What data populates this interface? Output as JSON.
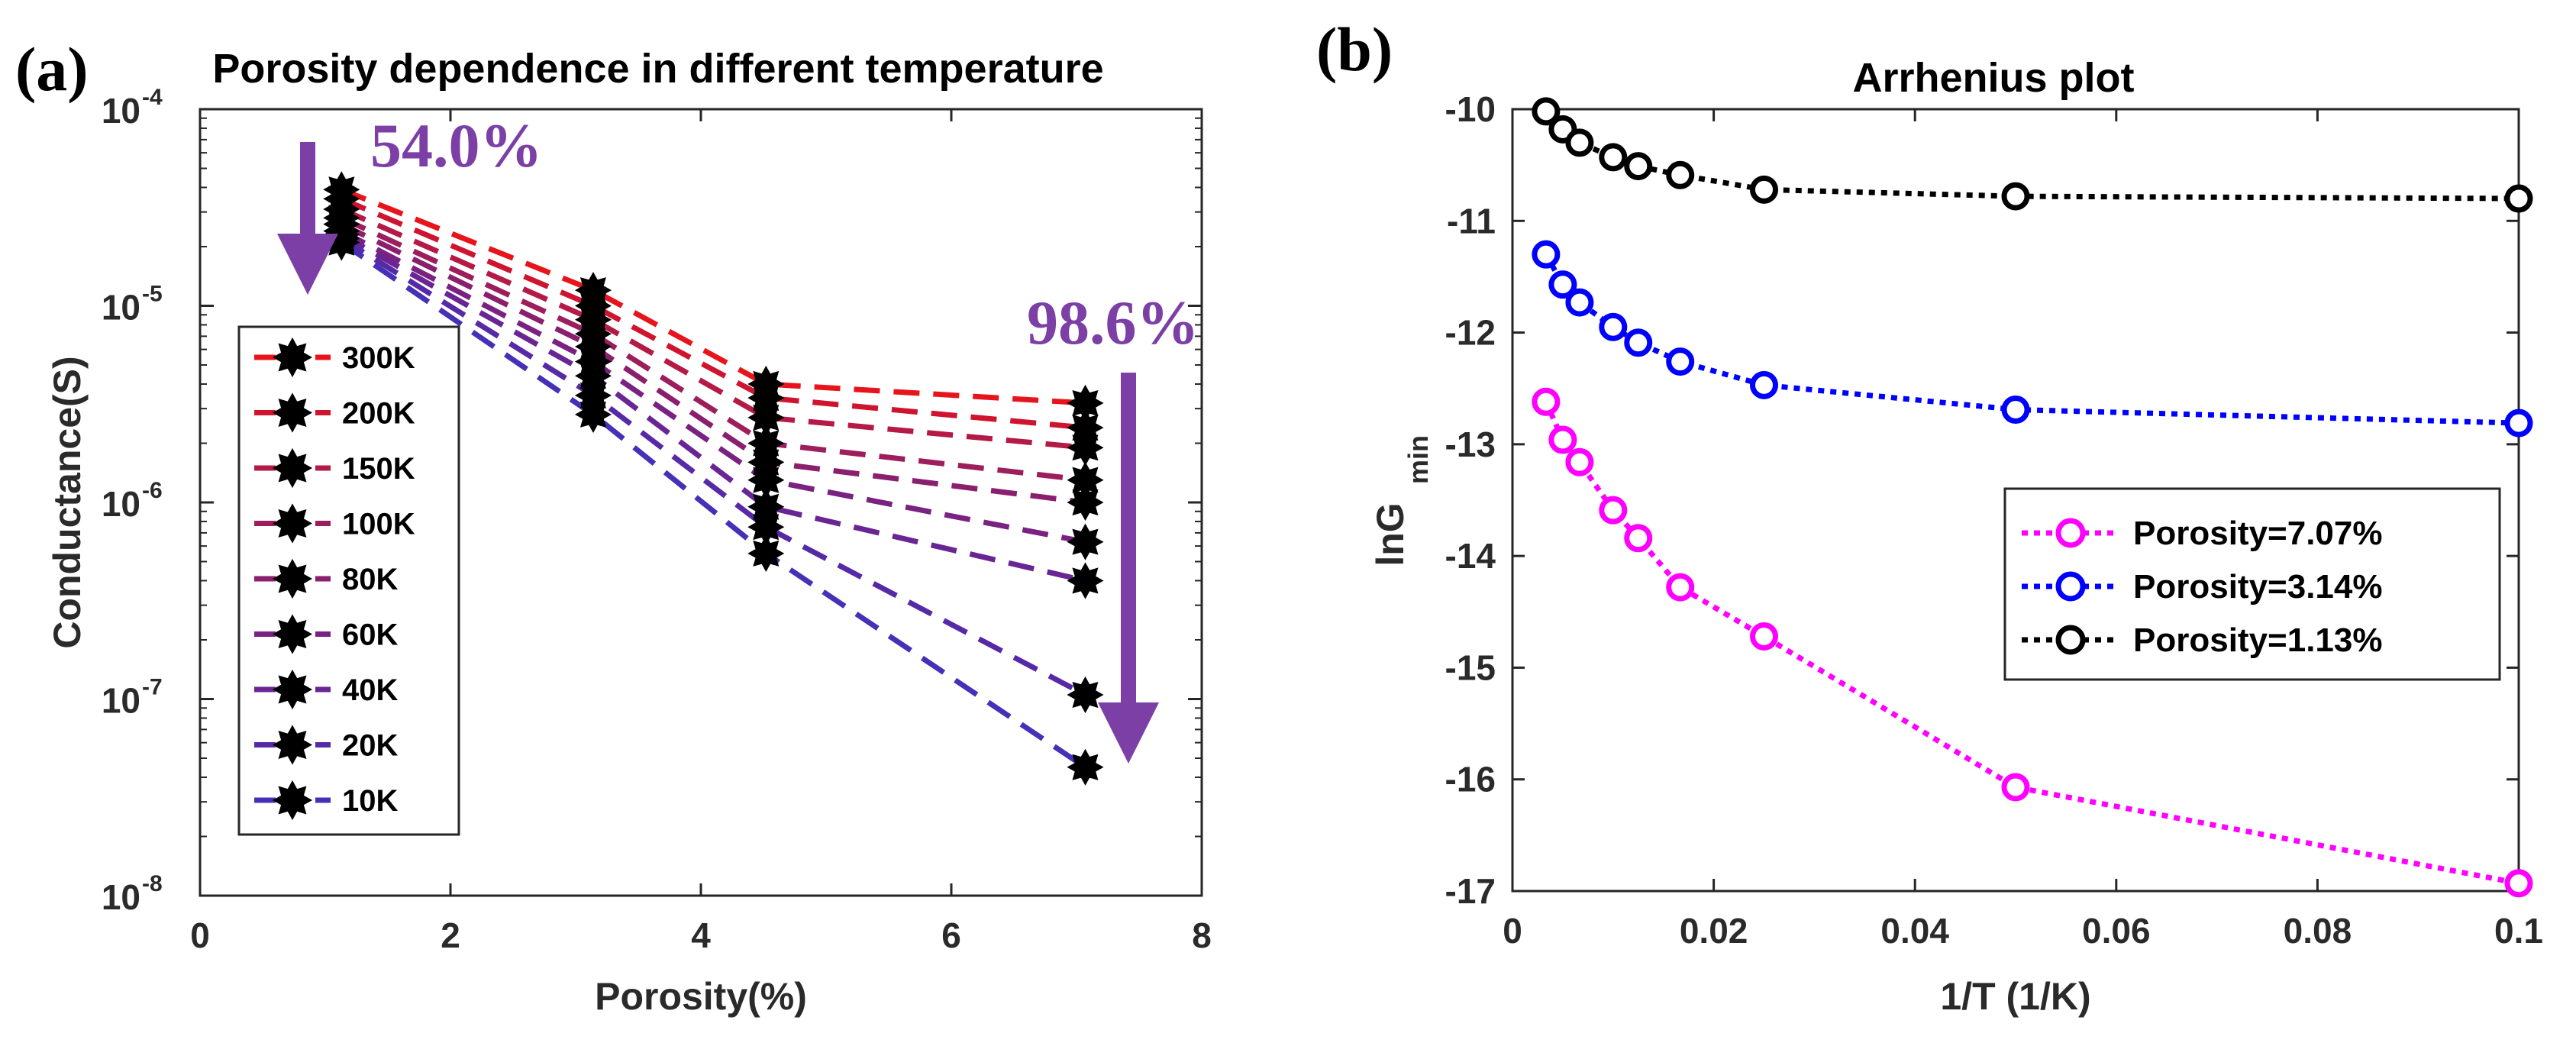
{
  "chart_data": [
    {
      "panel_label": "(a)",
      "type": "line",
      "title": "Porosity dependence in different temperature",
      "xlabel": "Porosity(%)",
      "ylabel": "Conductance(S)",
      "xlim": [
        0,
        8
      ],
      "ylim_log10": [
        -8,
        -4
      ],
      "yscale": "log",
      "xticks": [
        0,
        2,
        4,
        6,
        8
      ],
      "xtick_labels": [
        "0",
        "2",
        "4",
        "6",
        "8"
      ],
      "yticks_exp": [
        -8,
        -7,
        -6,
        -5,
        -4
      ],
      "ytick_base": "10",
      "ytick_exponents": [
        "-8",
        "-7",
        "-6",
        "-5",
        "-4"
      ],
      "x": [
        1.13,
        3.14,
        4.52,
        7.07
      ],
      "series": [
        {
          "name": "300K",
          "color": "#e8141c",
          "values": [
            3.9e-05,
            1.2e-05,
            4e-06,
            3.2e-06
          ]
        },
        {
          "name": "200K",
          "color": "#cf1430",
          "values": [
            3.5e-05,
            1e-05,
            3.4e-06,
            2.4e-06
          ]
        },
        {
          "name": "150K",
          "color": "#b41a45",
          "values": [
            3.1e-05,
            8.5e-06,
            2.7e-06,
            1.9e-06
          ]
        },
        {
          "name": "100K",
          "color": "#9c1e5c",
          "values": [
            2.8e-05,
            7.2e-06,
            2e-06,
            1.3e-06
          ]
        },
        {
          "name": "80K",
          "color": "#8a1f6e",
          "values": [
            2.6e-05,
            6.2e-06,
            1.6e-06,
            1e-06
          ]
        },
        {
          "name": "60K",
          "color": "#7a2281",
          "values": [
            2.4e-05,
            5.2e-06,
            1.3e-06,
            6.3e-07
          ]
        },
        {
          "name": "40K",
          "color": "#692594",
          "values": [
            2.3e-05,
            4.4e-06,
            9.5e-07,
            4e-07
          ]
        },
        {
          "name": "20K",
          "color": "#562aa6",
          "values": [
            2.2e-05,
            3.5e-06,
            7.5e-07,
            1.05e-07
          ]
        },
        {
          "name": "10K",
          "color": "#4630b8",
          "values": [
            2.1e-05,
            2.8e-06,
            5.5e-07,
            4.5e-08
          ]
        }
      ],
      "annotations": [
        {
          "text": "54.0%",
          "color": "#7b3fa6"
        },
        {
          "text": "98.6%",
          "color": "#7b3fa6"
        }
      ]
    },
    {
      "panel_label": "(b)",
      "type": "line",
      "title": "Arrhenius plot",
      "xlabel": "1/T (1/K)",
      "ylabel_main": "lnG",
      "ylabel_sub": "min",
      "xlim": [
        0,
        0.1
      ],
      "ylim": [
        -17,
        -10
      ],
      "xticks": [
        0,
        0.02,
        0.04,
        0.06,
        0.08,
        0.1
      ],
      "xtick_labels": [
        "0",
        "0.02",
        "0.04",
        "0.06",
        "0.08",
        "0.1"
      ],
      "yticks": [
        -17,
        -16,
        -15,
        -14,
        -13,
        -12,
        -11,
        -10
      ],
      "ytick_labels": [
        "-17",
        "-16",
        "-15",
        "-14",
        "-13",
        "-12",
        "-11",
        "-10"
      ],
      "x": [
        0.00333,
        0.005,
        0.00667,
        0.01,
        0.0125,
        0.01667,
        0.025,
        0.05,
        0.1
      ],
      "series": [
        {
          "name": "Porosity=7.07%",
          "color": "#ff00ff",
          "values": [
            -12.62,
            -12.96,
            -13.16,
            -13.59,
            -13.84,
            -14.28,
            -14.72,
            -16.07,
            -16.93
          ]
        },
        {
          "name": "Porosity=3.14%",
          "color": "#0000ff",
          "values": [
            -11.3,
            -11.57,
            -11.73,
            -11.95,
            -12.09,
            -12.26,
            -12.47,
            -12.69,
            -12.81
          ]
        },
        {
          "name": "Porosity=1.13%",
          "color": "#000000",
          "values": [
            -10.02,
            -10.18,
            -10.3,
            -10.43,
            -10.51,
            -10.59,
            -10.72,
            -10.78,
            -10.8
          ]
        }
      ]
    }
  ]
}
